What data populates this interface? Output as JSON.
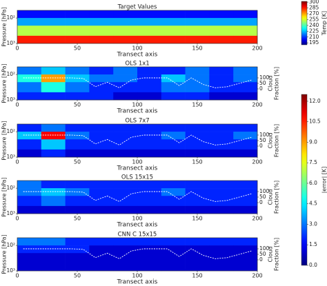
{
  "chart_data": [
    {
      "type": "heatmap",
      "title": "Target Values",
      "xlabel": "Transect axis",
      "ylabel": "Pressure [hPa]",
      "xlim": [
        0,
        200
      ],
      "xticks": [
        0,
        50,
        100,
        150,
        200
      ],
      "ylim": [
        1000,
        50
      ],
      "log_y": true,
      "yticks": [
        {
          "value": 100,
          "label": "10²"
        },
        {
          "value": 1000,
          "label": "10³"
        }
      ],
      "xbins": [
        0,
        20,
        40,
        60,
        80,
        100,
        120,
        140,
        160,
        180,
        200
      ],
      "ybins": [
        50,
        100,
        200,
        500,
        1000
      ],
      "z": [
        [
          205,
          205,
          205,
          205,
          205,
          205,
          205,
          205,
          205,
          205
        ],
        [
          222,
          222,
          222,
          222,
          222,
          222,
          222,
          222,
          222,
          222
        ],
        [
          252,
          252,
          252,
          252,
          252,
          252,
          252,
          252,
          252,
          252
        ],
        [
          285,
          285,
          285,
          285,
          285,
          285,
          285,
          285,
          285,
          285
        ]
      ],
      "colormap": "jet",
      "colorbar": {
        "label": "Temp [K]",
        "lim": [
          190,
          302
        ],
        "ticks": [
          195,
          210,
          225,
          240,
          255,
          270,
          285,
          300
        ]
      }
    },
    {
      "type": "heatmap",
      "title": "OLS 1x1",
      "xlabel": "Transect axis",
      "ylabel": "Pressure [hPa]",
      "y2label": [
        "Cloud",
        "Fraction [%]"
      ],
      "xlim": [
        0,
        200
      ],
      "xticks": [
        0,
        50,
        100,
        150,
        200
      ],
      "ylim": [
        1000,
        50
      ],
      "log_y": true,
      "yticks": [
        {
          "value": 100,
          "label": "10²"
        },
        {
          "value": 1000,
          "label": "10³"
        }
      ],
      "y2lim": [
        -100,
        200
      ],
      "y2ticks": [
        0,
        50,
        100
      ],
      "xbins": [
        0,
        20,
        40,
        60,
        80,
        100,
        120,
        140,
        160,
        180,
        200
      ],
      "ybins": [
        50,
        100,
        200,
        500,
        1000
      ],
      "z": [
        [
          3,
          4,
          3,
          2,
          3,
          2,
          2,
          3,
          2,
          3
        ],
        [
          5,
          9,
          4,
          3,
          3,
          2,
          4,
          3,
          2,
          3
        ],
        [
          3,
          5,
          3,
          2,
          2,
          2,
          3,
          3,
          2,
          2
        ],
        [
          2,
          2,
          2,
          2,
          1,
          1,
          2,
          2,
          1,
          1
        ]
      ],
      "colormap": "jet",
      "colorbar": {
        "label": "|error| [K]",
        "lim": [
          0,
          12.5
        ],
        "ticks": [
          {
            "value": 0,
            "label": "0.0"
          },
          1.5,
          {
            "value": 3,
            "label": "3.0"
          },
          4.5,
          {
            "value": 6,
            "label": "6.0"
          },
          7.5,
          {
            "value": 9,
            "label": "9.0"
          },
          10.5,
          {
            "value": 12,
            "label": "12.0"
          }
        ]
      },
      "cloud_fraction": {
        "color": "#ffffff",
        "x": [
          5,
          15,
          25,
          35,
          45,
          55,
          65,
          75,
          85,
          95,
          105,
          115,
          125,
          135,
          145,
          155,
          165,
          175,
          185,
          195
        ],
        "values": [
          100,
          100,
          100,
          100,
          100,
          95,
          20,
          60,
          10,
          80,
          100,
          100,
          100,
          30,
          100,
          40,
          10,
          20,
          50,
          80
        ]
      }
    },
    {
      "type": "heatmap",
      "title": "OLS 7x7",
      "xlabel": "Transect axis",
      "ylabel": "Pressure [hPa]",
      "y2label": [
        "Cloud",
        "Fraction [%]"
      ],
      "xlim": [
        0,
        200
      ],
      "xticks": [
        0,
        50,
        100,
        150,
        200
      ],
      "ylim": [
        1000,
        50
      ],
      "log_y": true,
      "yticks": [
        {
          "value": 100,
          "label": "10²"
        },
        {
          "value": 1000,
          "label": "10³"
        }
      ],
      "y2lim": [
        -100,
        200
      ],
      "y2ticks": [
        0,
        50,
        100
      ],
      "xbins": [
        0,
        20,
        40,
        60,
        80,
        100,
        120,
        140,
        160,
        180,
        200
      ],
      "ybins": [
        50,
        100,
        200,
        500,
        1000
      ],
      "z": [
        [
          2,
          3,
          2,
          2,
          2,
          2,
          2,
          2,
          2,
          2
        ],
        [
          4,
          11,
          3,
          2,
          2,
          2,
          3,
          2,
          2,
          3
        ],
        [
          2,
          4,
          2,
          2,
          2,
          2,
          2,
          2,
          2,
          2
        ],
        [
          1,
          2,
          1,
          1,
          1,
          1,
          1,
          1,
          1,
          1
        ]
      ],
      "colormap": "jet",
      "colorbar_ref": 1,
      "cloud_fraction": {
        "color": "#ffffff",
        "x": [
          5,
          15,
          25,
          35,
          45,
          55,
          65,
          75,
          85,
          95,
          105,
          115,
          125,
          135,
          145,
          155,
          165,
          175,
          185,
          195
        ],
        "values": [
          100,
          100,
          100,
          100,
          100,
          95,
          20,
          60,
          10,
          80,
          100,
          100,
          100,
          30,
          100,
          40,
          10,
          20,
          50,
          80
        ]
      }
    },
    {
      "type": "heatmap",
      "title": "OLS 15x15",
      "xlabel": "Transect axis",
      "ylabel": "Pressure [hPa]",
      "y2label": [
        "Cloud",
        "Fraction [%]"
      ],
      "xlim": [
        0,
        200
      ],
      "xticks": [
        0,
        50,
        100,
        150,
        200
      ],
      "ylim": [
        1000,
        50
      ],
      "log_y": true,
      "yticks": [
        {
          "value": 100,
          "label": "10²"
        },
        {
          "value": 1000,
          "label": "10³"
        }
      ],
      "y2lim": [
        -100,
        200
      ],
      "y2ticks": [
        0,
        50,
        100
      ],
      "xbins": [
        0,
        20,
        40,
        60,
        80,
        100,
        120,
        140,
        160,
        180,
        200
      ],
      "ybins": [
        50,
        100,
        200,
        500,
        1000
      ],
      "z": [
        [
          3,
          2,
          2,
          2,
          2,
          2,
          2,
          2,
          2,
          2
        ],
        [
          3,
          4,
          3,
          2,
          2,
          2,
          3,
          2,
          2,
          2
        ],
        [
          2,
          3,
          2,
          2,
          2,
          2,
          2,
          2,
          2,
          2
        ],
        [
          1,
          1,
          1,
          1,
          1,
          1,
          1,
          1,
          1,
          1
        ]
      ],
      "colormap": "jet",
      "colorbar_ref": 1,
      "cloud_fraction": {
        "color": "#ffffff",
        "x": [
          5,
          15,
          25,
          35,
          45,
          55,
          65,
          75,
          85,
          95,
          105,
          115,
          125,
          135,
          145,
          155,
          165,
          175,
          185,
          195
        ],
        "values": [
          100,
          100,
          100,
          100,
          100,
          95,
          20,
          60,
          10,
          80,
          100,
          100,
          100,
          30,
          100,
          40,
          10,
          20,
          50,
          80
        ]
      }
    },
    {
      "type": "heatmap",
      "title": "CNN C 15x15",
      "xlabel": "Transect axis",
      "ylabel": "Pressure [hPa]",
      "y2label": [
        "Cloud",
        "Fraction [%]"
      ],
      "xlim": [
        0,
        200
      ],
      "xticks": [
        0,
        50,
        100,
        150,
        200
      ],
      "ylim": [
        1000,
        50
      ],
      "log_y": true,
      "yticks": [
        {
          "value": 100,
          "label": "10²"
        },
        {
          "value": 1000,
          "label": "10³"
        }
      ],
      "y2lim": [
        -100,
        200
      ],
      "y2ticks": [
        0,
        50,
        100
      ],
      "xbins": [
        0,
        20,
        40,
        60,
        80,
        100,
        120,
        140,
        160,
        180,
        200
      ],
      "ybins": [
        50,
        100,
        200,
        500,
        1000
      ],
      "z": [
        [
          3,
          3,
          2,
          2,
          2,
          2,
          2,
          2,
          2,
          2
        ],
        [
          2,
          2,
          2,
          1,
          1,
          1,
          1,
          1,
          1,
          1
        ],
        [
          1,
          1,
          1,
          1,
          1,
          1,
          1,
          1,
          1,
          1
        ],
        [
          1,
          1,
          1,
          1,
          1,
          1,
          1,
          1,
          1,
          1
        ]
      ],
      "colormap": "jet",
      "colorbar_ref": 1,
      "cloud_fraction": {
        "color": "#ffffff",
        "x": [
          5,
          15,
          25,
          35,
          45,
          55,
          65,
          75,
          85,
          95,
          105,
          115,
          125,
          135,
          145,
          155,
          165,
          175,
          185,
          195
        ],
        "values": [
          100,
          100,
          100,
          100,
          100,
          95,
          20,
          60,
          10,
          80,
          100,
          100,
          100,
          30,
          100,
          40,
          10,
          20,
          50,
          80
        ]
      }
    }
  ]
}
